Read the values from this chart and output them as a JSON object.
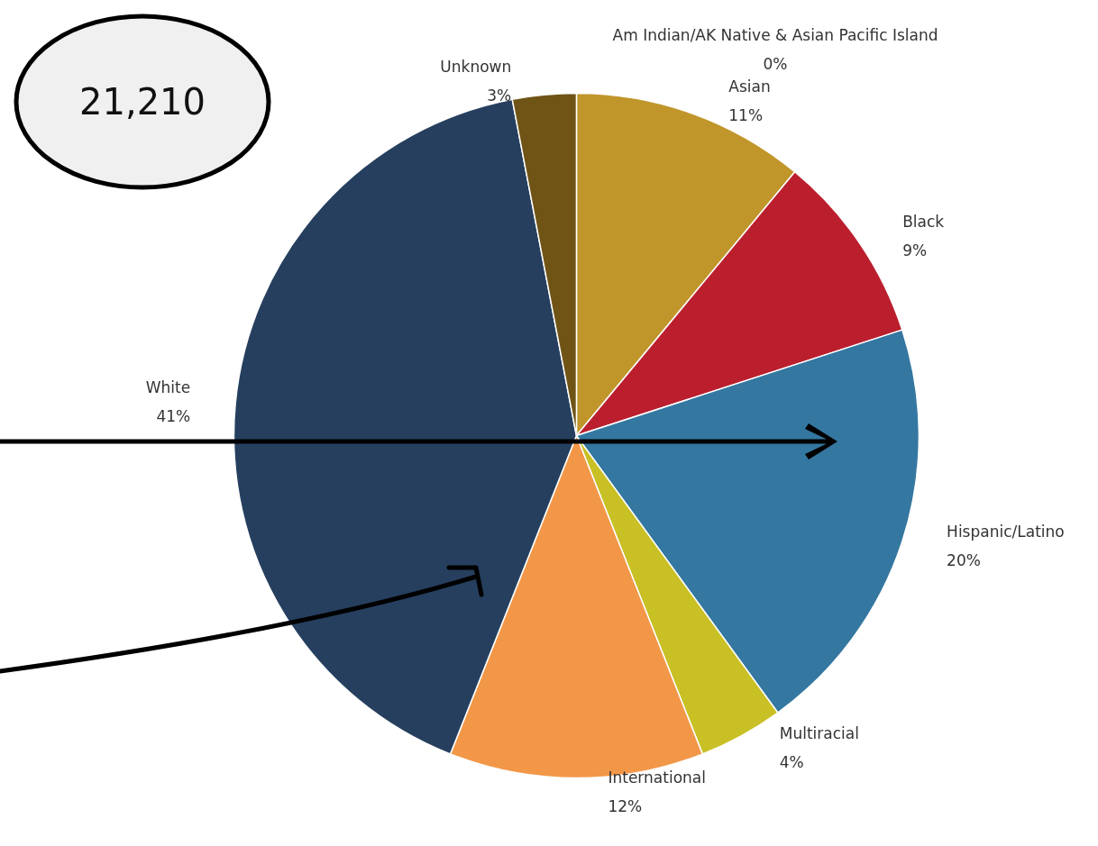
{
  "chart_data": {
    "type": "pie",
    "categories": [
      "Am Indian/AK Native & Asian Pacific Island",
      "Asian",
      "Black",
      "Hispanic/Latino",
      "Multiracial",
      "International",
      "White",
      "Unknown"
    ],
    "values": [
      0,
      11,
      9,
      20,
      4,
      12,
      41,
      3
    ],
    "value_labels": [
      "0%",
      "11%",
      "9%",
      "20%",
      "4%",
      "12%",
      "41%",
      "3%"
    ],
    "colors": [
      "#efe3c8",
      "#c0962b",
      "#bb1f2e",
      "#3477a0",
      "#c8c024",
      "#f29748",
      "#263f5e",
      "#6f5416"
    ],
    "annotations": [
      "21,210"
    ],
    "legend": false
  }
}
